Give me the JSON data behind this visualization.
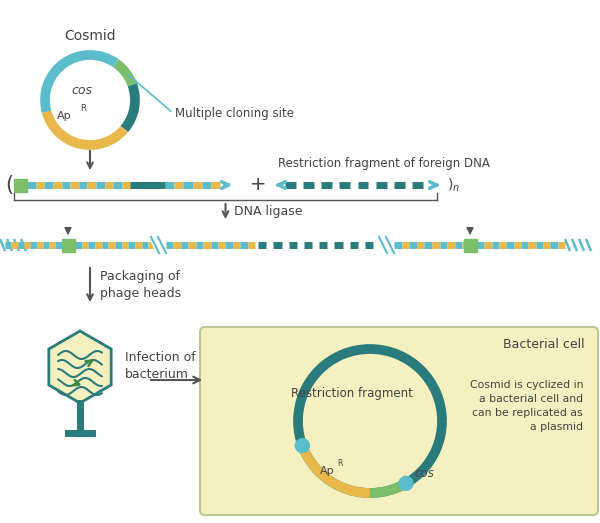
{
  "bg_color": "#ffffff",
  "teal_dark": "#2a7b7b",
  "teal_light": "#5bbccc",
  "gold": "#e8b84b",
  "green": "#7bbf6a",
  "green_dark": "#3a8a3a",
  "text_color": "#444444",
  "yellow_bg": "#f5f0c0",
  "gray": "#555555",
  "cosmid_label": "Cosmid",
  "cos_label": "cos",
  "apr_label": "Ap",
  "mcs_label": "Multiple cloning site",
  "restr_label": "Restriction fragment of foreign DNA",
  "ligase_label": "DNA ligase",
  "packaging_label": "Packaging of\nphage heads",
  "infection_label": "Infection of\nbacterium",
  "bact_label": "Bacterial cell",
  "restr_frag_label": "Restriction fragment",
  "cyclized_label": "Cosmid is cyclized in\na bacterial cell and\ncan be replicated as\na plasmid"
}
